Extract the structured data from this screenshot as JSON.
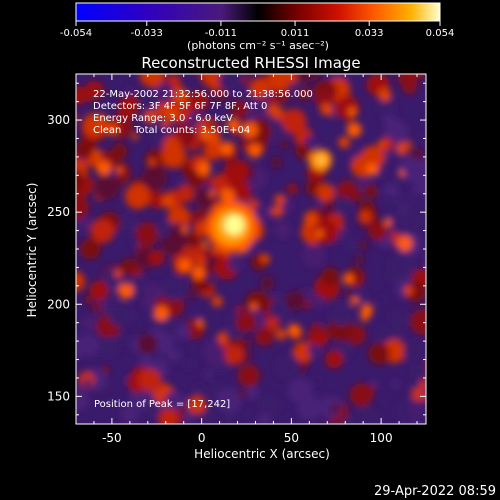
{
  "colorbar": {
    "tick_labels": [
      "-0.054",
      "-0.033",
      "-0.011",
      "0.011",
      "0.033",
      "0.054"
    ],
    "tick_values": [
      -0.054,
      -0.033,
      -0.011,
      0.011,
      0.033,
      0.054
    ],
    "range": [
      -0.054,
      0.054
    ],
    "units": "(photons cm⁻² s⁻¹ asec⁻²)",
    "colors": [
      "#0000ff",
      "#3000c0",
      "#5a1a9a",
      "#000000",
      "#600000",
      "#c00000",
      "#ff5a00",
      "#ffb000",
      "#ffffc8"
    ]
  },
  "image": {
    "title": "Reconstructed RHESSI Image",
    "info_lines": [
      "22-May-2002 21:32:56.000 to 21:38:56.000",
      "Detectors: 3F 4F 5F 6F 7F 8F, Att 0",
      "Energy Range: 3.0 - 6.0 keV",
      "Clean    Total counts: 3.50E+04"
    ],
    "peak_label": "Position of Peak = [17,242]",
    "peak_position": [
      17,
      242
    ],
    "x_range": [
      -70,
      125
    ],
    "y_range": [
      135,
      325
    ]
  },
  "axes": {
    "xlabel": "Heliocentric X (arcsec)",
    "ylabel": "Heliocentric Y (arcsec)",
    "x_ticks": [
      -50,
      0,
      50,
      100
    ],
    "x_tick_labels": [
      "-50",
      "0",
      "50",
      "100"
    ],
    "y_ticks": [
      150,
      200,
      250,
      300
    ],
    "y_tick_labels": [
      "150",
      "200",
      "250",
      "300"
    ]
  },
  "footer": {
    "timestamp": "29-Apr-2022 08:59"
  }
}
